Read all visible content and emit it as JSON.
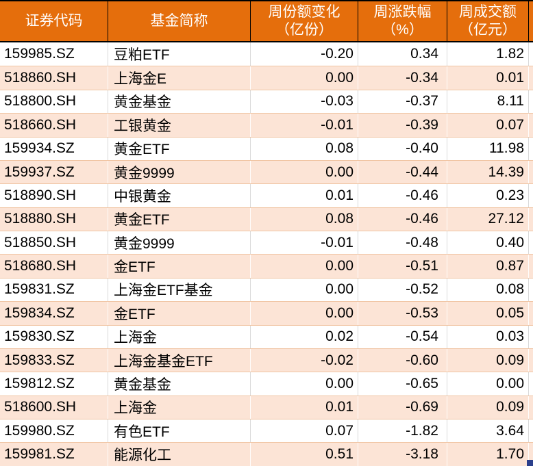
{
  "colors": {
    "header_bg": "#E56E0C",
    "header_text": "#FFFFFF",
    "header_border": "#000000",
    "row_bg": "#FFFFFF",
    "row_alt_bg": "#FCE4D6",
    "row_divider": "#F0C4A2",
    "grid_line_white_row": "#D9D9D9",
    "grid_line_peach_row": "#FFFFFF",
    "corner_handle": "#2B3F8C"
  },
  "chart_data": {
    "type": "table",
    "columns": [
      "证券代码",
      "基金简称",
      "周份额变化（亿份）",
      "周涨跌幅（%）",
      "周成交额（亿元）"
    ],
    "header_lines": [
      [
        "证券代码"
      ],
      [
        "基金简称"
      ],
      [
        "周份额变化",
        "（亿份）"
      ],
      [
        "周涨跌幅",
        "（%）"
      ],
      [
        "周成交额",
        "（亿元）"
      ]
    ],
    "rows": [
      [
        "159985.SZ",
        "豆粕ETF",
        "-0.20",
        "0.34",
        "1.82"
      ],
      [
        "518860.SH",
        "上海金E",
        "0.00",
        "-0.34",
        "0.01"
      ],
      [
        "518800.SH",
        "黄金基金",
        "-0.03",
        "-0.37",
        "8.11"
      ],
      [
        "518660.SH",
        "工银黄金",
        "-0.01",
        "-0.39",
        "0.07"
      ],
      [
        "159934.SZ",
        "黄金ETF",
        "0.08",
        "-0.40",
        "11.98"
      ],
      [
        "159937.SZ",
        "黄金9999",
        "0.00",
        "-0.44",
        "14.39"
      ],
      [
        "518890.SH",
        "中银黄金",
        "0.01",
        "-0.46",
        "0.23"
      ],
      [
        "518880.SH",
        "黄金ETF",
        "0.08",
        "-0.46",
        "27.12"
      ],
      [
        "518850.SH",
        "黄金9999",
        "-0.01",
        "-0.48",
        "0.40"
      ],
      [
        "518680.SH",
        "金ETF",
        "0.00",
        "-0.51",
        "0.87"
      ],
      [
        "159831.SZ",
        "上海金ETF基金",
        "0.00",
        "-0.52",
        "0.08"
      ],
      [
        "159834.SZ",
        "金ETF",
        "0.00",
        "-0.53",
        "0.05"
      ],
      [
        "159830.SZ",
        "上海金",
        "0.02",
        "-0.54",
        "0.03"
      ],
      [
        "159833.SZ",
        "上海金基金ETF",
        "-0.02",
        "-0.60",
        "0.09"
      ],
      [
        "159812.SZ",
        "黄金基金",
        "0.00",
        "-0.65",
        "0.00"
      ],
      [
        "518600.SH",
        "上海金",
        "0.01",
        "-0.69",
        "0.09"
      ],
      [
        "159980.SZ",
        "有色ETF",
        "0.07",
        "-1.82",
        "3.64"
      ],
      [
        "159981.SZ",
        "能源化工",
        "0.51",
        "-3.18",
        "1.70"
      ]
    ]
  }
}
